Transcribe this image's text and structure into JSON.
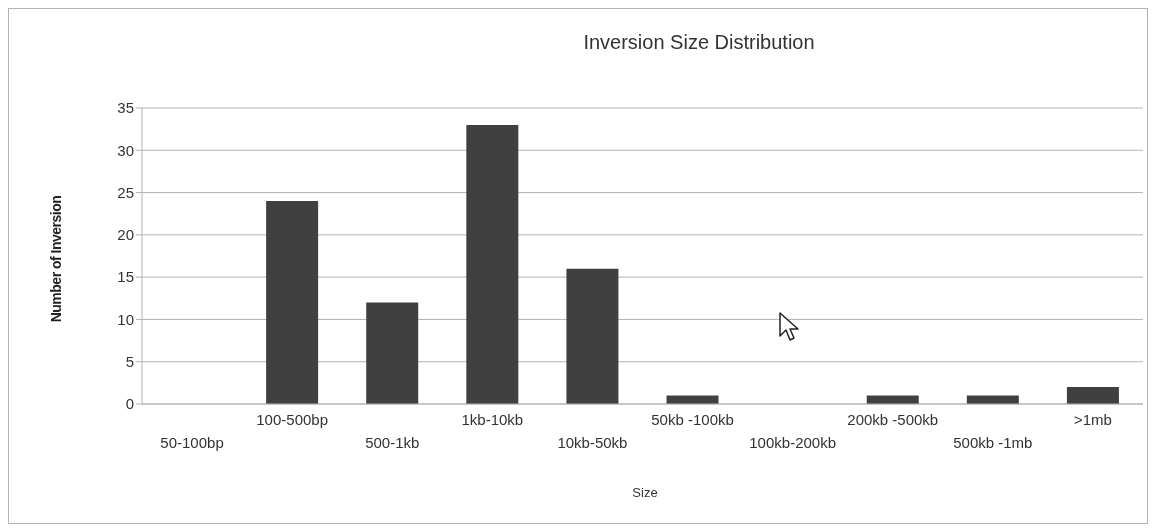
{
  "chart_data": {
    "type": "bar",
    "title": "Inversion Size Distribution",
    "xlabel": "Size",
    "ylabel": "Number of Inversion",
    "categories": [
      "50-100bp",
      "100-500bp",
      "500-1kb",
      "1kb-10kb",
      "10kb-50kb",
      "50kb -100kb",
      "100kb-200kb",
      "200kb -500kb",
      "500kb -1mb",
      ">1mb"
    ],
    "values": [
      0,
      24,
      12,
      33,
      16,
      1,
      0,
      1,
      1,
      2
    ],
    "color": "#404040",
    "ylim": [
      0,
      35
    ],
    "yticks": [
      0,
      5,
      10,
      15,
      20,
      25,
      30,
      35
    ],
    "grid": "y",
    "legend": false
  }
}
